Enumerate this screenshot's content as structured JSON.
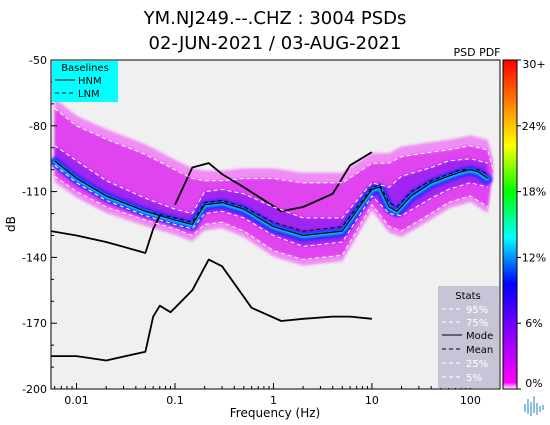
{
  "title_line1": "YM.NJ249.--.CHZ : 3004 PSDs",
  "title_line2": "02-JUN-2021 / 03-AUG-2021",
  "colorbar_title": "PSD PDF",
  "colors": {
    "plot_background": "#f0f0f0",
    "baselines_legend_bg": "#00ffff",
    "stats_legend_bg": "#c8c4d8",
    "pdf_low": "#ff00ff",
    "pdf_high": "#ff0000",
    "stats_lines": "#ffffff",
    "noise_models": "#000000"
  },
  "logo_icon": "waveform-logo-icon",
  "chart_data": {
    "type": "heatmap",
    "xlabel": "Frequency (Hz)",
    "ylabel": "dB",
    "xscale": "log",
    "xlim": [
      0.0055,
      200
    ],
    "ylim": [
      -200,
      -50
    ],
    "x_ticks": [
      {
        "value": 0.01,
        "label": "0.01"
      },
      {
        "value": 0.1,
        "label": "0.1"
      },
      {
        "value": 1,
        "label": "1"
      },
      {
        "value": 10,
        "label": "10"
      },
      {
        "value": 100,
        "label": "100"
      }
    ],
    "y_ticks": [
      {
        "value": -50,
        "label": "-50"
      },
      {
        "value": -80,
        "label": "-80"
      },
      {
        "value": -110,
        "label": "-110"
      },
      {
        "value": -140,
        "label": "-140"
      },
      {
        "value": -170,
        "label": "-170"
      },
      {
        "value": -200,
        "label": "-200"
      }
    ],
    "colorbar": {
      "ticks": [
        "0%",
        "6%",
        "12%",
        "18%",
        "24%",
        "30+"
      ],
      "range": [
        0,
        30
      ]
    },
    "baselines_legend": {
      "title": "Baselines",
      "entries": [
        {
          "label": "HNM",
          "style": "solid"
        },
        {
          "label": "LNM",
          "style": "dashed"
        }
      ]
    },
    "stats_legend": {
      "title": "Stats",
      "entries": [
        {
          "label": "95%",
          "style": "dashed-white"
        },
        {
          "label": "75%",
          "style": "dashed-white"
        },
        {
          "label": "Mode",
          "style": "solid-black"
        },
        {
          "label": "Mean",
          "style": "dashed-black"
        },
        {
          "label": "25%",
          "style": "dashed-white"
        },
        {
          "label": "5%",
          "style": "dashed-white"
        }
      ]
    },
    "series": [
      {
        "name": "HNM",
        "x": [
          0.1,
          0.15,
          0.22,
          0.3,
          0.5,
          1.2,
          2,
          4,
          6,
          10
        ],
        "y": [
          -116,
          -99,
          -97,
          -102,
          -108,
          -119,
          -117,
          -111,
          -98,
          -92
        ]
      },
      {
        "name": "LNM",
        "x": [
          0.0055,
          0.01,
          0.02,
          0.05,
          0.06,
          0.07,
          0.09,
          0.1,
          0.15,
          0.22,
          0.3,
          0.6,
          1.2,
          2,
          4,
          6,
          10
        ],
        "y": [
          -185,
          -185,
          -187,
          -183,
          -167,
          -162,
          -165,
          -163,
          -155,
          -141,
          -144,
          -163,
          -169,
          -168,
          -167,
          -167,
          -168
        ]
      },
      {
        "name": "HNM (low frequency)",
        "x": [
          0.0055,
          0.01,
          0.02,
          0.05,
          0.06,
          0.07
        ],
        "y": [
          -128,
          -130,
          -133,
          -138,
          -127,
          -121
        ]
      },
      {
        "name": "Mode",
        "x": [
          0.006,
          0.01,
          0.02,
          0.05,
          0.1,
          0.15,
          0.2,
          0.3,
          0.5,
          1,
          2,
          5,
          8,
          10,
          12,
          15,
          18,
          25,
          40,
          60,
          80,
          100,
          120,
          150
        ],
        "y": [
          -96,
          -104,
          -112,
          -119,
          -123,
          -125,
          -116,
          -115,
          -118,
          -126,
          -130,
          -128,
          -115,
          -109,
          -108,
          -117,
          -119,
          -112,
          -106,
          -103,
          -101,
          -100,
          -101,
          -104
        ]
      },
      {
        "name": "Mean",
        "x": [
          0.006,
          0.01,
          0.02,
          0.05,
          0.1,
          0.15,
          0.2,
          0.3,
          0.5,
          1,
          2,
          5,
          8,
          10,
          12,
          15,
          18,
          25,
          40,
          60,
          80,
          100,
          120,
          150
        ],
        "y": [
          -96,
          -104,
          -112,
          -119,
          -122,
          -124,
          -115,
          -114,
          -117,
          -124,
          -128,
          -126,
          -114,
          -108,
          -107,
          -115,
          -117,
          -110,
          -105,
          -102,
          -100,
          -100,
          -100,
          -102
        ]
      },
      {
        "name": "95%",
        "x": [
          0.006,
          0.01,
          0.02,
          0.05,
          0.1,
          0.15,
          0.2,
          0.3,
          0.5,
          1,
          2,
          5,
          10,
          15,
          20,
          40,
          60,
          100,
          150,
          170
        ],
        "y": [
          -72,
          -80,
          -86,
          -93,
          -100,
          -104,
          -105,
          -105,
          -104,
          -104,
          -106,
          -106,
          -97,
          -97,
          -94,
          -92,
          -91,
          -89,
          -91,
          -100
        ]
      },
      {
        "name": "75%",
        "x": [
          0.006,
          0.01,
          0.02,
          0.05,
          0.1,
          0.15,
          0.2,
          0.3,
          0.5,
          1,
          2,
          5,
          10,
          15,
          20,
          40,
          60,
          100,
          150
        ],
        "y": [
          -89,
          -96,
          -105,
          -113,
          -118,
          -120,
          -110,
          -109,
          -111,
          -117,
          -122,
          -122,
          -106,
          -108,
          -103,
          -99,
          -96,
          -95,
          -97
        ]
      },
      {
        "name": "25%",
        "x": [
          0.006,
          0.01,
          0.02,
          0.05,
          0.1,
          0.15,
          0.2,
          0.3,
          0.5,
          1,
          2,
          5,
          10,
          15,
          20,
          40,
          60,
          100,
          150
        ],
        "y": [
          -98,
          -106,
          -114,
          -121,
          -125,
          -127,
          -120,
          -119,
          -122,
          -130,
          -135,
          -133,
          -112,
          -120,
          -121,
          -113,
          -109,
          -106,
          -108
        ]
      },
      {
        "name": "5%",
        "x": [
          0.006,
          0.01,
          0.02,
          0.05,
          0.1,
          0.15,
          0.2,
          0.3,
          0.5,
          1,
          2,
          5,
          10,
          15,
          20,
          40,
          60,
          100,
          150
        ],
        "y": [
          -103,
          -110,
          -117,
          -123,
          -127,
          -130,
          -125,
          -124,
          -128,
          -137,
          -141,
          -139,
          -116,
          -126,
          -128,
          -120,
          -115,
          -112,
          -117
        ]
      }
    ]
  }
}
